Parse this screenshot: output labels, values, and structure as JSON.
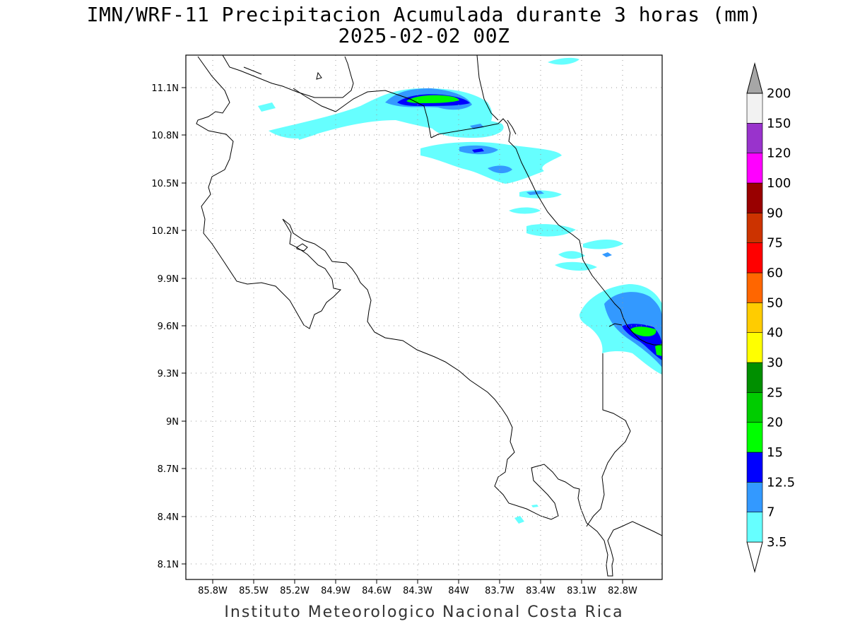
{
  "title_line1": "IMN/WRF-11 Precipitacion Acumulada durante 3 horas (mm)",
  "title_line2": "2025-02-02 00Z",
  "footer": "Instituto Meteorologico Nacional Costa Rica",
  "lat_ticks": [
    "11.1N",
    "10.8N",
    "10.5N",
    "10.2N",
    "9.9N",
    "9.6N",
    "9.3N",
    "9N",
    "8.7N",
    "8.4N",
    "8.1N"
  ],
  "lon_ticks": [
    "85.8W",
    "85.5W",
    "85.2W",
    "84.9W",
    "84.6W",
    "84.3W",
    "84W",
    "83.7W",
    "83.4W",
    "83.1W",
    "82.8W"
  ],
  "colorbar": {
    "labels": [
      "3.5",
      "7",
      "12.5",
      "15",
      "20",
      "25",
      "30",
      "40",
      "50",
      "60",
      "75",
      "90",
      "100",
      "120",
      "150",
      "200"
    ],
    "colors": [
      "#ffffff",
      "#66ffff",
      "#3399ff",
      "#0000ff",
      "#00ff00",
      "#00cc00",
      "#008f00",
      "#ffff00",
      "#ffcc00",
      "#ff6600",
      "#ff0000",
      "#cc3300",
      "#990000",
      "#ff00ff",
      "#9933cc",
      "#f2f2f2",
      "#a6a6a6"
    ]
  }
}
